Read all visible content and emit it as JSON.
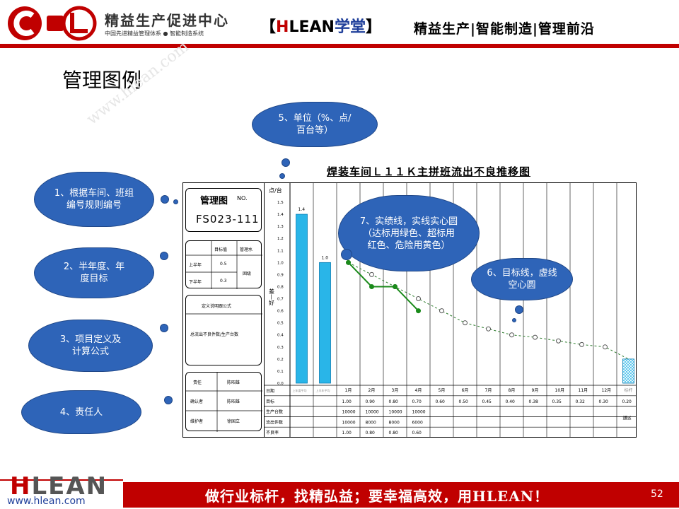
{
  "header": {
    "org_name": "精益生产促进中心",
    "org_sub": "中国先进精益管理体系 ● 智能制造系统",
    "brand_open": "【",
    "brand_h": "H",
    "brand_lean": "LEAN",
    "brand_school": "学堂",
    "brand_close": "】",
    "slogan": "精益生产|智能制造|管理前沿",
    "logo_letters": "CL"
  },
  "page_title": "管理图例",
  "watermark": "www.hlean.com",
  "info": {
    "title_label": "管理图",
    "title_no": "NO.",
    "code": "FS023-111",
    "goal_head": [
      "",
      "目标值",
      "管理水"
    ],
    "goal_rows": [
      {
        "label": "上半年",
        "value": "0.5"
      },
      {
        "label": "下半年",
        "value": "0.3"
      }
    ],
    "goal_level": "困级",
    "def_head": "定义说明跟公式",
    "def_formula": "总流出不良件数/生产台数",
    "resp_rows": [
      {
        "label": "责任",
        "value": "陈昭雄"
      },
      {
        "label": "确认者",
        "value": "陈昭雄"
      },
      {
        "label": "维护者",
        "value": "徐国立"
      }
    ]
  },
  "callouts": {
    "c1": "1、根据车间、班组编号规则编号",
    "c2": "2、半年度、年度目标",
    "c3": "3、项目定义及计算公式",
    "c4": "4、责任人",
    "c5": "5、单位（%、点/百台等）",
    "c6": "6、目标线，虚线空心圆",
    "c7": "7、实绩线，实线实心圆（达标用绿色、超标用红色、危险用黄色）"
  },
  "chart_data": {
    "type": "bar+line",
    "title": "焊装车间Ｌ１１Ｋ主拼班流出不良推移图",
    "ylabel": "差—好",
    "yunit": "点/台",
    "ylim": [
      0,
      1.5
    ],
    "yticks": [
      "0.0",
      "0.1",
      "0.2",
      "0.3",
      "0.4",
      "0.5",
      "0.6",
      "0.7",
      "0.8",
      "0.9",
      "1.0",
      "1.1",
      "1.2",
      "1.3",
      "1.4",
      "1.5"
    ],
    "bars": [
      {
        "label": "上年度平均",
        "value": 1.4,
        "text": "1.4"
      },
      {
        "label": "上半年平均",
        "value": 1.0,
        "text": "1.0"
      }
    ],
    "months": [
      "1月",
      "2月",
      "3月",
      "4月",
      "5月",
      "6月",
      "7月",
      "8月",
      "9月",
      "10月",
      "11月",
      "12月"
    ],
    "target_label": "标杆",
    "target": [
      1.0,
      0.9,
      0.8,
      0.7,
      0.6,
      0.5,
      0.45,
      0.4,
      0.38,
      0.35,
      0.32,
      0.3
    ],
    "target_bar": 0.2,
    "actual": [
      1.0,
      0.8,
      0.8,
      0.6
    ],
    "table": {
      "row_labels": [
        "日期",
        "目标",
        "生产台数",
        "流出件数",
        "不良率"
      ],
      "target_row": [
        "1.00",
        "0.90",
        "0.80",
        "0.70",
        "0.60",
        "0.50",
        "0.45",
        "0.40",
        "0.38",
        "0.35",
        "0.32",
        "0.30",
        "0.20"
      ],
      "production_row": [
        "10000",
        "10000",
        "10000",
        "10000"
      ],
      "outflow_row": [
        "10000",
        "8000",
        "8000",
        "6000"
      ],
      "rate_row": [
        "1.00",
        "0.80",
        "0.80",
        "0.60"
      ],
      "note": "通派"
    },
    "colors": {
      "bar": "#29b5e8",
      "actual": "#1a8a1a",
      "target": "#555555"
    }
  },
  "footer": {
    "logo_h": "H",
    "logo_rest": "LEAN",
    "url": "www.hlean.com",
    "tagline": "做行业标杆，找精弘益；要幸福高效，用HLEAN！",
    "page": "52"
  }
}
